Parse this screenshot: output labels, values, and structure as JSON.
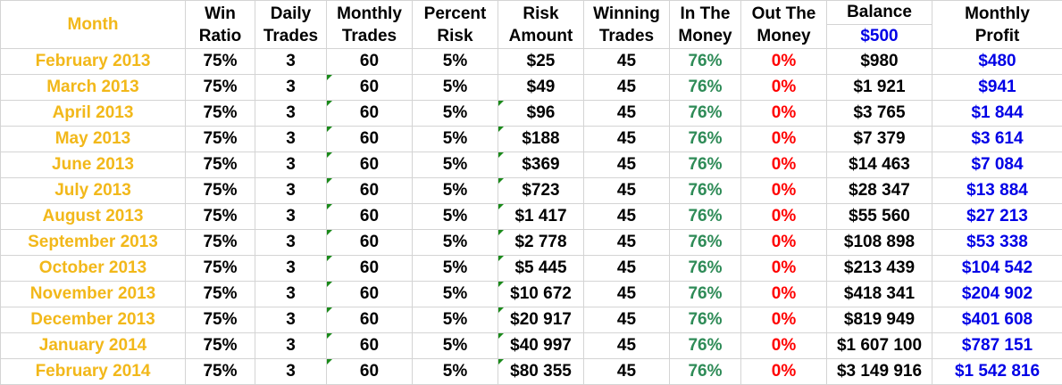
{
  "headers": {
    "month": "Month",
    "win_ratio": [
      "Win",
      "Ratio"
    ],
    "daily_trades": [
      "Daily",
      "Trades"
    ],
    "monthly_trades": [
      "Monthly",
      "Trades"
    ],
    "percent_risk": [
      "Percent",
      "Risk"
    ],
    "risk_amount": [
      "Risk",
      "Amount"
    ],
    "winning_trades": [
      "Winning",
      "Trades"
    ],
    "in_the_money": [
      "In The",
      "Money"
    ],
    "out_the_money": [
      "Out The",
      "Money"
    ],
    "balance": "Balance",
    "starting_balance": "$500",
    "monthly_profit": [
      "Monthly",
      "Profit"
    ]
  },
  "colors": {
    "month_text": "#f2b81a",
    "in_the_money": "#2e8b57",
    "out_the_money": "#ff0000",
    "profit": "#0000e6",
    "error_flag": "#1a8a1a"
  },
  "rows": [
    {
      "month": "February 2013",
      "win_ratio": "75%",
      "daily_trades": "3",
      "monthly_trades": "60",
      "percent_risk": "5%",
      "risk_amount": "$25",
      "winning_trades": "45",
      "in_the_money": "76%",
      "out_the_money": "0%",
      "balance": "$980",
      "monthly_profit": "$480",
      "flag_monthly": false,
      "flag_risk": false
    },
    {
      "month": "March 2013",
      "win_ratio": "75%",
      "daily_trades": "3",
      "monthly_trades": "60",
      "percent_risk": "5%",
      "risk_amount": "$49",
      "winning_trades": "45",
      "in_the_money": "76%",
      "out_the_money": "0%",
      "balance": "$1 921",
      "monthly_profit": "$941",
      "flag_monthly": true,
      "flag_risk": false
    },
    {
      "month": "April 2013",
      "win_ratio": "75%",
      "daily_trades": "3",
      "monthly_trades": "60",
      "percent_risk": "5%",
      "risk_amount": "$96",
      "winning_trades": "45",
      "in_the_money": "76%",
      "out_the_money": "0%",
      "balance": "$3 765",
      "monthly_profit": "$1 844",
      "flag_monthly": true,
      "flag_risk": true
    },
    {
      "month": "May 2013",
      "win_ratio": "75%",
      "daily_trades": "3",
      "monthly_trades": "60",
      "percent_risk": "5%",
      "risk_amount": "$188",
      "winning_trades": "45",
      "in_the_money": "76%",
      "out_the_money": "0%",
      "balance": "$7 379",
      "monthly_profit": "$3 614",
      "flag_monthly": true,
      "flag_risk": true
    },
    {
      "month": "June 2013",
      "win_ratio": "75%",
      "daily_trades": "3",
      "monthly_trades": "60",
      "percent_risk": "5%",
      "risk_amount": "$369",
      "winning_trades": "45",
      "in_the_money": "76%",
      "out_the_money": "0%",
      "balance": "$14 463",
      "monthly_profit": "$7 084",
      "flag_monthly": true,
      "flag_risk": true
    },
    {
      "month": "July 2013",
      "win_ratio": "75%",
      "daily_trades": "3",
      "monthly_trades": "60",
      "percent_risk": "5%",
      "risk_amount": "$723",
      "winning_trades": "45",
      "in_the_money": "76%",
      "out_the_money": "0%",
      "balance": "$28 347",
      "monthly_profit": "$13 884",
      "flag_monthly": true,
      "flag_risk": true
    },
    {
      "month": "August 2013",
      "win_ratio": "75%",
      "daily_trades": "3",
      "monthly_trades": "60",
      "percent_risk": "5%",
      "risk_amount": "$1 417",
      "winning_trades": "45",
      "in_the_money": "76%",
      "out_the_money": "0%",
      "balance": "$55 560",
      "monthly_profit": "$27 213",
      "flag_monthly": true,
      "flag_risk": true
    },
    {
      "month": "September 2013",
      "win_ratio": "75%",
      "daily_trades": "3",
      "monthly_trades": "60",
      "percent_risk": "5%",
      "risk_amount": "$2 778",
      "winning_trades": "45",
      "in_the_money": "76%",
      "out_the_money": "0%",
      "balance": "$108 898",
      "monthly_profit": "$53 338",
      "flag_monthly": true,
      "flag_risk": true
    },
    {
      "month": "October 2013",
      "win_ratio": "75%",
      "daily_trades": "3",
      "monthly_trades": "60",
      "percent_risk": "5%",
      "risk_amount": "$5 445",
      "winning_trades": "45",
      "in_the_money": "76%",
      "out_the_money": "0%",
      "balance": "$213 439",
      "monthly_profit": "$104 542",
      "flag_monthly": true,
      "flag_risk": true
    },
    {
      "month": "November 2013",
      "win_ratio": "75%",
      "daily_trades": "3",
      "monthly_trades": "60",
      "percent_risk": "5%",
      "risk_amount": "$10 672",
      "winning_trades": "45",
      "in_the_money": "76%",
      "out_the_money": "0%",
      "balance": "$418 341",
      "monthly_profit": "$204 902",
      "flag_monthly": true,
      "flag_risk": true
    },
    {
      "month": "December 2013",
      "win_ratio": "75%",
      "daily_trades": "3",
      "monthly_trades": "60",
      "percent_risk": "5%",
      "risk_amount": "$20 917",
      "winning_trades": "45",
      "in_the_money": "76%",
      "out_the_money": "0%",
      "balance": "$819 949",
      "monthly_profit": "$401 608",
      "flag_monthly": true,
      "flag_risk": true
    },
    {
      "month": "January 2014",
      "win_ratio": "75%",
      "daily_trades": "3",
      "monthly_trades": "60",
      "percent_risk": "5%",
      "risk_amount": "$40 997",
      "winning_trades": "45",
      "in_the_money": "76%",
      "out_the_money": "0%",
      "balance": "$1 607 100",
      "monthly_profit": "$787 151",
      "flag_monthly": true,
      "flag_risk": true
    },
    {
      "month": "February 2014",
      "win_ratio": "75%",
      "daily_trades": "3",
      "monthly_trades": "60",
      "percent_risk": "5%",
      "risk_amount": "$80 355",
      "winning_trades": "45",
      "in_the_money": "76%",
      "out_the_money": "0%",
      "balance": "$3 149 916",
      "monthly_profit": "$1 542 816",
      "flag_monthly": true,
      "flag_risk": true
    }
  ]
}
